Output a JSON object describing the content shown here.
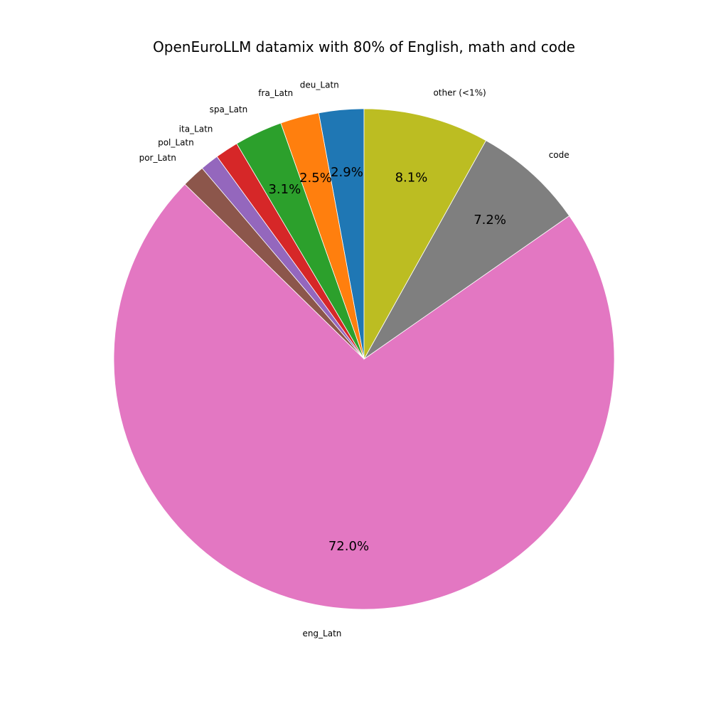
{
  "chart_data": {
    "type": "pie",
    "title": "OpenEuroLLM datamix with 80% of English, math and code",
    "start_angle": 90,
    "direction": "counterclockwise",
    "slices": [
      {
        "label": "deu_Latn",
        "value": 2.9,
        "pct_label": "2.9%",
        "color": "#1f77b4"
      },
      {
        "label": "fra_Latn",
        "value": 2.5,
        "pct_label": "2.5%",
        "color": "#ff7f0e"
      },
      {
        "label": "spa_Latn",
        "value": 3.1,
        "pct_label": "3.1%",
        "color": "#2ca02c"
      },
      {
        "label": "ita_Latn",
        "value": 1.5,
        "pct_label": "",
        "color": "#d62728"
      },
      {
        "label": "pol_Latn",
        "value": 1.2,
        "pct_label": "",
        "color": "#9467bd"
      },
      {
        "label": "por_Latn",
        "value": 1.5,
        "pct_label": "",
        "color": "#8c564b"
      },
      {
        "label": "eng_Latn",
        "value": 72.0,
        "pct_label": "72.0%",
        "color": "#e377c2"
      },
      {
        "label": "code",
        "value": 7.2,
        "pct_label": "7.2%",
        "color": "#7f7f7f"
      },
      {
        "label": "other (<1%)",
        "value": 8.1,
        "pct_label": "8.1%",
        "color": "#bcbd22"
      }
    ]
  }
}
